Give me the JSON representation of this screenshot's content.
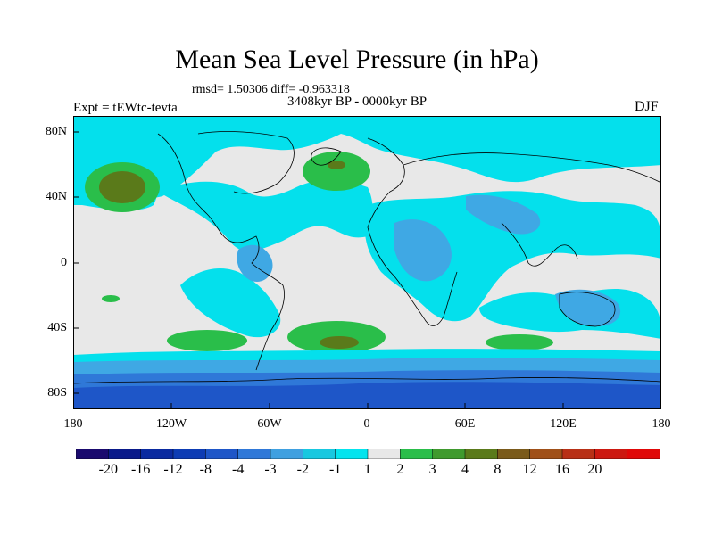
{
  "title": "Mean Sea Level Pressure (in hPa)",
  "stats": "rmsd= 1.50306 diff= -0.963318",
  "period": "3408kyr BP - 0000kyr BP",
  "experiment": "Expt = tEWtc-tevta",
  "season": "DJF",
  "lat_labels": [
    "80N",
    "40N",
    "0",
    "40S",
    "80S"
  ],
  "lon_labels": [
    "180",
    "120W",
    "60W",
    "0",
    "60E",
    "120E",
    "180"
  ],
  "colorbar": {
    "labels": [
      "-20",
      "-16",
      "-12",
      "-8",
      "-4",
      "-3",
      "-2",
      "-1",
      "1",
      "2",
      "3",
      "4",
      "8",
      "12",
      "16",
      "20"
    ],
    "colors": [
      "#1a0a6e",
      "#0a1a8a",
      "#0a2aa0",
      "#0d3cb4",
      "#1e56c8",
      "#2f78d8",
      "#3fa0e0",
      "#18c8e0",
      "#04e4ee",
      "#e8e8e8",
      "#2abe4a",
      "#3f9a2e",
      "#5a7a1a",
      "#7a5a1a",
      "#a05018",
      "#b83016",
      "#cc1810",
      "#e00808"
    ]
  },
  "map_colors": {
    "ocean_light": "#e8e8e8",
    "cyan": "#04e0ec",
    "light_blue": "#3fa8e4",
    "mid_blue": "#2f78d8",
    "blue": "#1e56c8",
    "green": "#2abe4a",
    "olive": "#5a7a1a",
    "coast": "#000000"
  }
}
